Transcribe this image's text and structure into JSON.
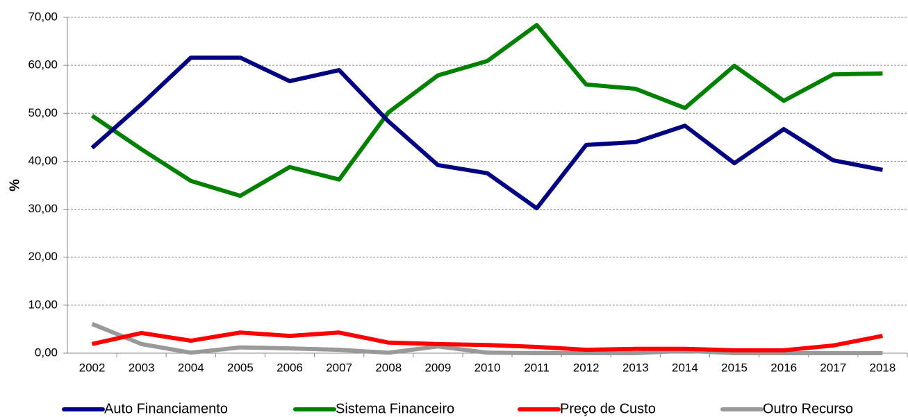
{
  "chart_data": {
    "type": "line",
    "y_label": "%",
    "categories": [
      "2002",
      "2003",
      "2004",
      "2005",
      "2006",
      "2007",
      "2008",
      "2009",
      "2010",
      "2011",
      "2012",
      "2013",
      "2014",
      "2015",
      "2016",
      "2017",
      "2018"
    ],
    "series": [
      {
        "name": "Auto Financiamento",
        "color": "#000080",
        "values": [
          42.8,
          51.9,
          61.6,
          61.6,
          56.7,
          59.0,
          48.3,
          39.2,
          37.5,
          30.2,
          43.4,
          44.0,
          47.4,
          39.6,
          46.7,
          40.2,
          38.2
        ]
      },
      {
        "name": "Sistema Financeiro",
        "color": "#008000",
        "values": [
          49.5,
          42.5,
          35.9,
          32.8,
          38.8,
          36.2,
          50.2,
          57.9,
          60.9,
          68.4,
          56.0,
          55.1,
          51.1,
          59.9,
          52.6,
          58.1,
          58.3
        ]
      },
      {
        "name": "Preço de Custo",
        "color": "#ff0000",
        "values": [
          1.9,
          4.2,
          2.6,
          4.3,
          3.6,
          4.3,
          2.2,
          1.9,
          1.7,
          1.3,
          0.7,
          0.9,
          0.9,
          0.6,
          0.6,
          1.6,
          3.6
        ]
      },
      {
        "name": "Outro Recurso",
        "color": "#999999",
        "values": [
          6.1,
          1.9,
          0.1,
          1.2,
          1.0,
          0.7,
          0.1,
          1.4,
          0.1,
          0,
          0,
          0,
          0.5,
          0,
          0,
          0,
          0
        ]
      }
    ],
    "ylim": [
      0,
      70
    ],
    "yticks": [
      {
        "value": 0,
        "label": "0,00"
      },
      {
        "value": 10,
        "label": "10,00"
      },
      {
        "value": 20,
        "label": "20,00"
      },
      {
        "value": 30,
        "label": "30,00"
      },
      {
        "value": 40,
        "label": "40,00"
      },
      {
        "value": 50,
        "label": "50,00"
      },
      {
        "value": 60,
        "label": "60,00"
      },
      {
        "value": 70,
        "label": "70,00"
      }
    ],
    "grid": true,
    "legend": "bottom"
  }
}
